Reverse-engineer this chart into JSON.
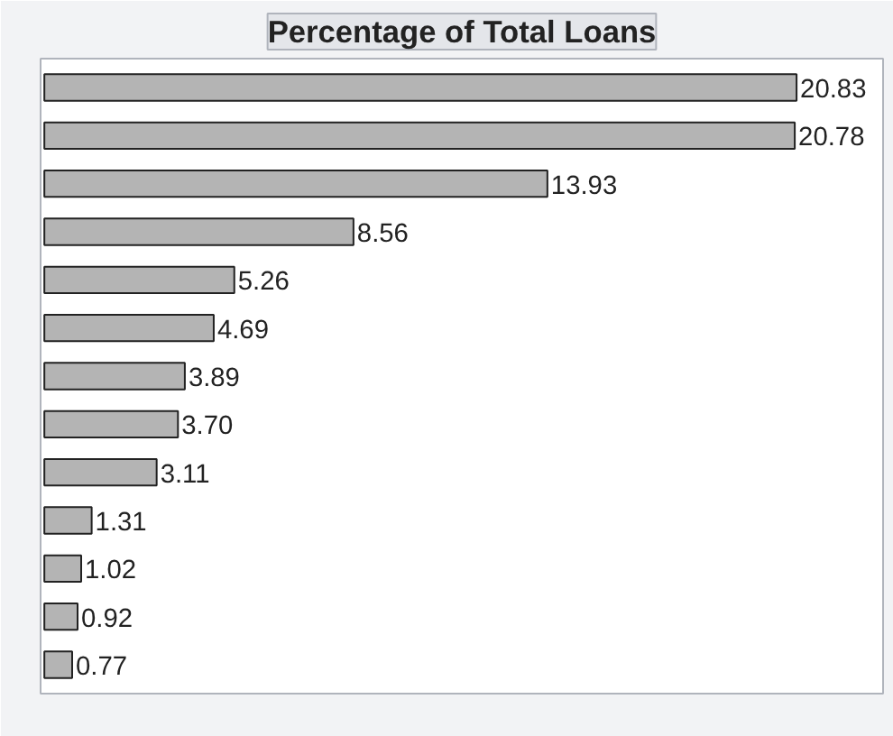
{
  "chart_data": {
    "type": "bar",
    "title": "Percentage of Total Loans",
    "orientation": "horizontal",
    "categories": [
      null,
      null,
      null,
      null,
      null,
      null,
      null,
      null,
      null,
      null,
      null,
      null,
      null
    ],
    "values": [
      20.83,
      20.78,
      13.93,
      8.56,
      5.26,
      4.69,
      3.89,
      3.7,
      3.11,
      1.31,
      1.02,
      0.92,
      0.77
    ],
    "value_labels": [
      "20.83",
      "20.78",
      "13.93",
      "8.56",
      "5.26",
      "4.69",
      "3.89",
      "3.70",
      "3.11",
      "1.31",
      "1.02",
      "0.92",
      "0.77"
    ],
    "color": "#b4b4b4"
  }
}
